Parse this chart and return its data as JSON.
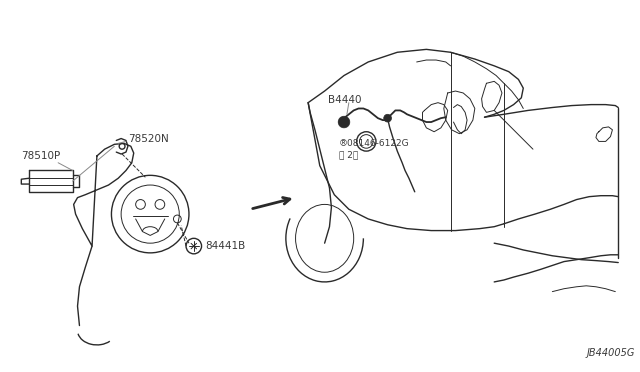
{
  "bg_color": "#ffffff",
  "line_color": "#2a2a2a",
  "label_color": "#3a3a3a",
  "leader_color": "#888888",
  "fig_width": 6.4,
  "fig_height": 3.72,
  "dpi": 100,
  "diagram_label": "JB44005G",
  "label_78510P": "78510P",
  "label_78520N": "78520N",
  "label_84441B": "84441B",
  "label_B4440": "B4440",
  "label_bolt": "®08146-6122G\n。2。"
}
